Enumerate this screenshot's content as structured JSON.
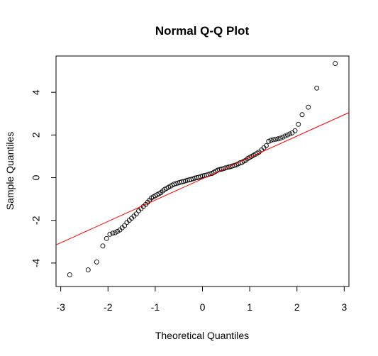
{
  "chart_data": {
    "type": "scatter",
    "title": "Normal Q-Q Plot",
    "xlabel": "Theoretical Quantiles",
    "ylabel": "Sample Quantiles",
    "xlim": [
      -3.1,
      3.1
    ],
    "ylim": [
      -5.1,
      5.7
    ],
    "x_ticks": [
      -3,
      -2,
      -1,
      0,
      1,
      2,
      3
    ],
    "y_ticks": [
      -4,
      -2,
      0,
      2,
      4
    ],
    "x_tick_labels": [
      "-3",
      "-2",
      "-1",
      "0",
      "1",
      "2",
      "3"
    ],
    "y_tick_labels": [
      "-4",
      "-2",
      "0",
      "2",
      "4"
    ],
    "grid": false,
    "point_color": "#000000",
    "line_color": "#ff0000",
    "reference_line": {
      "slope": 1.0,
      "intercept": -0.05
    },
    "points": {
      "x": [
        -2.81,
        -2.42,
        -2.24,
        -2.11,
        -2.03,
        -1.96,
        -1.9,
        -1.85,
        -1.8,
        -1.75,
        -1.7,
        -1.65,
        -1.6,
        -1.55,
        -1.5,
        -1.45,
        -1.4,
        -1.35,
        -1.3,
        -1.25,
        -1.2,
        -1.16,
        -1.12,
        -1.08,
        -1.04,
        -1.0,
        -0.96,
        -0.92,
        -0.88,
        -0.84,
        -0.8,
        -0.76,
        -0.72,
        -0.68,
        -0.64,
        -0.6,
        -0.56,
        -0.52,
        -0.48,
        -0.44,
        -0.4,
        -0.36,
        -0.32,
        -0.28,
        -0.24,
        -0.2,
        -0.16,
        -0.12,
        -0.08,
        -0.04,
        0.0,
        0.04,
        0.08,
        0.12,
        0.16,
        0.2,
        0.24,
        0.28,
        0.32,
        0.36,
        0.4,
        0.44,
        0.48,
        0.52,
        0.56,
        0.6,
        0.64,
        0.68,
        0.72,
        0.76,
        0.8,
        0.84,
        0.88,
        0.92,
        0.96,
        1.0,
        1.04,
        1.08,
        1.12,
        1.16,
        1.2,
        1.25,
        1.3,
        1.35,
        1.4,
        1.45,
        1.5,
        1.55,
        1.6,
        1.65,
        1.7,
        1.75,
        1.8,
        1.85,
        1.9,
        1.96,
        2.03,
        2.11,
        2.24,
        2.42,
        2.81
      ],
      "y": [
        -4.55,
        -4.32,
        -3.95,
        -3.2,
        -2.85,
        -2.65,
        -2.6,
        -2.58,
        -2.52,
        -2.45,
        -2.35,
        -2.25,
        -2.1,
        -2.0,
        -1.9,
        -1.8,
        -1.7,
        -1.55,
        -1.45,
        -1.35,
        -1.25,
        -1.15,
        -1.05,
        -0.95,
        -0.9,
        -0.85,
        -0.8,
        -0.75,
        -0.7,
        -0.62,
        -0.55,
        -0.5,
        -0.45,
        -0.4,
        -0.35,
        -0.3,
        -0.28,
        -0.25,
        -0.22,
        -0.2,
        -0.18,
        -0.15,
        -0.12,
        -0.1,
        -0.08,
        -0.05,
        -0.02,
        0.0,
        0.02,
        0.05,
        0.08,
        0.1,
        0.12,
        0.15,
        0.18,
        0.2,
        0.25,
        0.3,
        0.35,
        0.38,
        0.4,
        0.42,
        0.45,
        0.48,
        0.5,
        0.52,
        0.55,
        0.58,
        0.6,
        0.65,
        0.7,
        0.72,
        0.78,
        0.82,
        0.9,
        0.95,
        1.0,
        1.05,
        1.1,
        1.15,
        1.2,
        1.3,
        1.4,
        1.5,
        1.7,
        1.75,
        1.78,
        1.8,
        1.82,
        1.85,
        1.9,
        1.95,
        2.0,
        2.05,
        2.1,
        2.2,
        2.5,
        2.95,
        3.3,
        4.2,
        5.35
      ]
    }
  }
}
